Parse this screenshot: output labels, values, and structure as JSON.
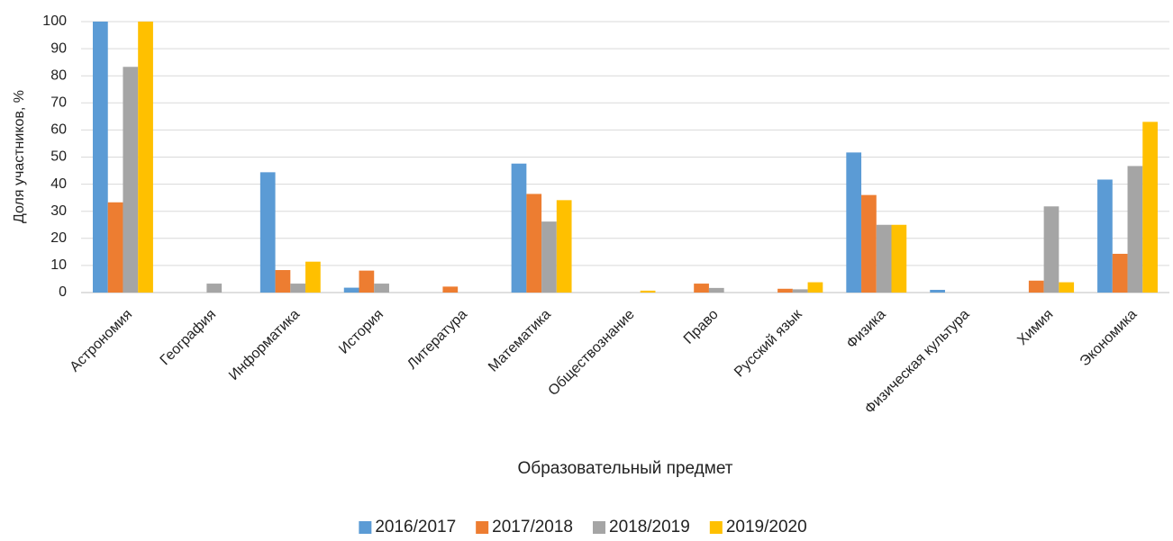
{
  "chart_data": {
    "type": "bar",
    "x_label": "Образовательный предмет",
    "y_label": "Доля участников, %",
    "categories": [
      "Астрономия",
      "География",
      "Информатика",
      "История",
      "Литература",
      "Математика",
      "Обществознание",
      "Право",
      "Русский язык",
      "Физика",
      "Физическая культура",
      "Химия",
      "Экономика"
    ],
    "series": [
      {
        "name": "2016/2017",
        "color": "#5b9bd5",
        "values": [
          100,
          0,
          44.4,
          1.8,
          0,
          47.6,
          0,
          0,
          0,
          51.7,
          1.0,
          0,
          41.7
        ]
      },
      {
        "name": "2017/2018",
        "color": "#ed7d31",
        "values": [
          33.3,
          0,
          8.3,
          8.1,
          2.2,
          36.4,
          0,
          3.3,
          1.4,
          36.0,
          0,
          4.4,
          14.3
        ]
      },
      {
        "name": "2018/2019",
        "color": "#a5a5a5",
        "values": [
          83.3,
          3.3,
          3.3,
          3.3,
          0,
          26.2,
          0,
          1.7,
          1.2,
          25.0,
          0,
          31.8,
          46.7
        ]
      },
      {
        "name": "2019/2020",
        "color": "#ffc000",
        "values": [
          100,
          0,
          11.4,
          0,
          0,
          34.1,
          0.7,
          0,
          3.8,
          25.0,
          0,
          3.8,
          63.0
        ]
      }
    ],
    "ylim": [
      0,
      100
    ],
    "yticks": [
      0,
      10,
      20,
      30,
      40,
      50,
      60,
      70,
      80,
      90,
      100
    ],
    "grid": true,
    "legend": "bottom"
  }
}
